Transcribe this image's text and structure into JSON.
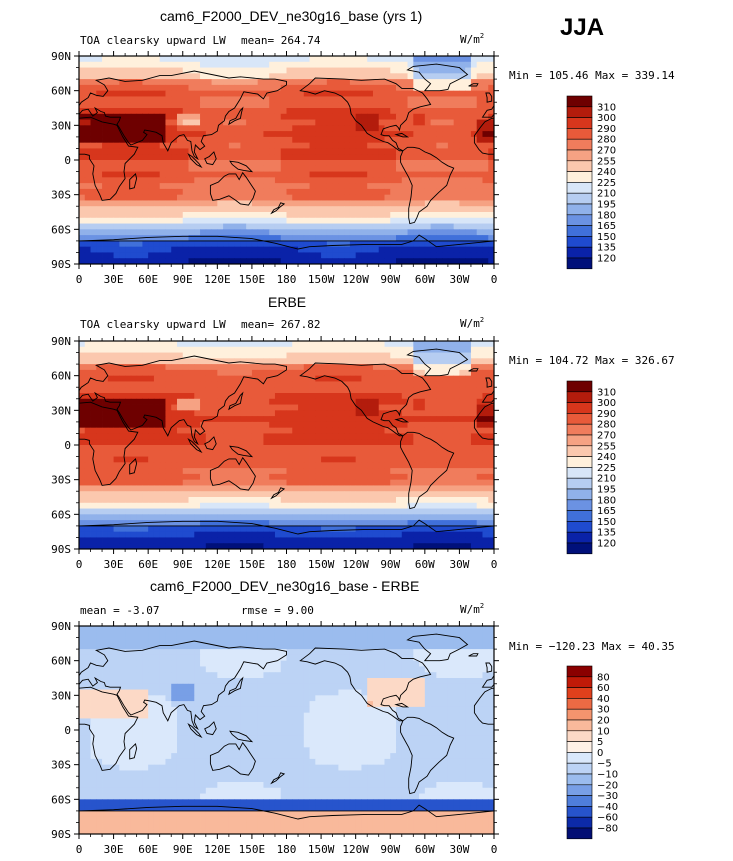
{
  "season_label": "JJA",
  "chart_data": [
    {
      "type": "heatmap",
      "title": "cam6_F2000_DEV_ne30g16_base (yrs 1)",
      "left_label": "TOA clearsky upward LW",
      "mean_text": "mean= 264.74",
      "units": "W/m",
      "units_exp": "2",
      "min": 105.46,
      "max": 339.14,
      "minmax_text": "Min = 105.46 Max = 339.14",
      "levels": [
        "310",
        "300",
        "290",
        "280",
        "270",
        "255",
        "240",
        "225",
        "210",
        "195",
        "180",
        "165",
        "150",
        "135",
        "120"
      ],
      "colors": [
        "#6e0000",
        "#b31c0c",
        "#d7361c",
        "#e85a3a",
        "#f07c5c",
        "#f6a283",
        "#fbc8ae",
        "#fff0dc",
        "#d8e6f8",
        "#b6cdf1",
        "#90b1ea",
        "#6b92e3",
        "#4070da",
        "#1f4bcf",
        "#0a22a8",
        "#00107a"
      ],
      "xticks": [
        "0",
        "30E",
        "60E",
        "90E",
        "120E",
        "150E",
        "180",
        "150W",
        "120W",
        "90W",
        "60W",
        "30W",
        "0"
      ],
      "yticks": [
        "90N",
        "60N",
        "30N",
        "0",
        "30S",
        "60S",
        "90S"
      ]
    },
    {
      "type": "heatmap",
      "title": "ERBE",
      "left_label": "TOA clearsky upward LW",
      "mean_text": "mean= 267.82",
      "units": "W/m",
      "units_exp": "2",
      "min": 104.72,
      "max": 326.67,
      "minmax_text": "Min = 104.72 Max = 326.67",
      "levels": [
        "310",
        "300",
        "290",
        "280",
        "270",
        "255",
        "240",
        "225",
        "210",
        "195",
        "180",
        "165",
        "150",
        "135",
        "120"
      ],
      "colors": [
        "#6e0000",
        "#b31c0c",
        "#d7361c",
        "#e85a3a",
        "#f07c5c",
        "#f6a283",
        "#fbc8ae",
        "#fff0dc",
        "#d8e6f8",
        "#b6cdf1",
        "#90b1ea",
        "#6b92e3",
        "#4070da",
        "#1f4bcf",
        "#0a22a8",
        "#00107a"
      ],
      "xticks": [
        "0",
        "30E",
        "60E",
        "90E",
        "120E",
        "150E",
        "180",
        "150W",
        "120W",
        "90W",
        "60W",
        "30W",
        "0"
      ],
      "yticks": [
        "90N",
        "60N",
        "30N",
        "0",
        "30S",
        "60S",
        "90S"
      ]
    },
    {
      "type": "heatmap",
      "title": "cam6_F2000_DEV_ne30g16_base - ERBE",
      "mean_text": "mean =  -3.07",
      "rmse_text": "rmse =   9.00",
      "units": "W/m",
      "units_exp": "2",
      "min": -120.23,
      "max": 40.35,
      "minmax_text": "Min = −120.23 Max =  40.35",
      "levels": [
        "80",
        "60",
        "40",
        "30",
        "20",
        "10",
        "5",
        "0",
        "−5",
        "−10",
        "−20",
        "−30",
        "−40",
        "−60",
        "−80"
      ],
      "colors": [
        "#8a0000",
        "#c01a08",
        "#e0401c",
        "#ec6a44",
        "#f4946e",
        "#f9b99b",
        "#fcd9c6",
        "#fff1e6",
        "#dae8fb",
        "#bcd3f5",
        "#9bbcee",
        "#789fe6",
        "#4f7edb",
        "#2754cc",
        "#0c2aa8",
        "#020e74"
      ],
      "xticks": [
        "0",
        "30E",
        "60E",
        "90E",
        "120E",
        "150E",
        "180",
        "150W",
        "120W",
        "90W",
        "60W",
        "30W",
        "0"
      ],
      "yticks": [
        "90N",
        "60N",
        "30N",
        "0",
        "30S",
        "60S",
        "90S"
      ]
    }
  ]
}
